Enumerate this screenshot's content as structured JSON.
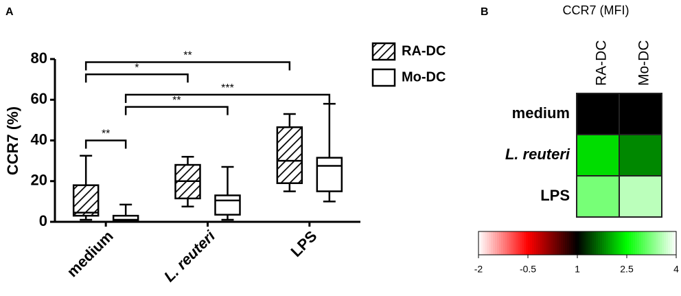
{
  "chart_data": [
    {
      "type": "box",
      "panel_label": "A",
      "ylabel": "CCR7 (%)",
      "categories": [
        "medium",
        "L. reuteri",
        "LPS"
      ],
      "category_styles": [
        "normal",
        "italic",
        "normal"
      ],
      "ylim": [
        0,
        80
      ],
      "yticks": [
        0,
        20,
        40,
        60,
        80
      ],
      "series": [
        {
          "name": "RA-DC",
          "color": "#000000",
          "fill": "hatch",
          "values": [
            {
              "min": 1,
              "q1": 3,
              "median": 4.5,
              "q3": 18,
              "max": 32.5
            },
            {
              "min": 7.5,
              "q1": 11.5,
              "median": 20,
              "q3": 28,
              "max": 32
            },
            {
              "min": 15,
              "q1": 19,
              "median": 30,
              "q3": 46.5,
              "max": 53
            }
          ]
        },
        {
          "name": "Mo-DC",
          "color": "#000000",
          "fill": "none",
          "values": [
            {
              "min": 0,
              "q1": 0.3,
              "median": 1,
              "q3": 3,
              "max": 8.5
            },
            {
              "min": 1,
              "q1": 3.5,
              "median": 10.5,
              "q3": 13,
              "max": 27
            },
            {
              "min": 10,
              "q1": 15,
              "median": 27.5,
              "q3": 31.5,
              "max": 58
            }
          ]
        }
      ],
      "annotations": [
        {
          "text": "**",
          "y": 78.5,
          "from": [
            0,
            0
          ],
          "to": [
            2,
            0
          ]
        },
        {
          "text": "*",
          "y": 72.5,
          "from": [
            0,
            0
          ],
          "to": [
            1,
            0
          ]
        },
        {
          "text": "***",
          "y": 62.5,
          "from": [
            0,
            1
          ],
          "to": [
            2,
            1
          ]
        },
        {
          "text": "**",
          "y": 56.5,
          "from": [
            0,
            1
          ],
          "to": [
            1,
            1
          ]
        },
        {
          "text": "**",
          "y": 40,
          "from": [
            0,
            0
          ],
          "to": [
            0,
            1
          ]
        }
      ]
    },
    {
      "type": "heatmap",
      "panel_label": "B",
      "title": "CCR7 (MFI)",
      "rows": [
        "medium",
        "L. reuteri",
        "LPS"
      ],
      "row_styles": [
        "normal",
        "italic",
        "normal"
      ],
      "columns": [
        "RA-DC",
        "Mo-DC"
      ],
      "values": [
        [
          1,
          1
        ],
        [
          2.3,
          1.8
        ],
        [
          3.2,
          3.6
        ]
      ],
      "colorbar_ticks": [
        -2,
        -0.5,
        1,
        2.5,
        4
      ],
      "colorbar_colors": [
        "#ffffff",
        "#ff0000",
        "#000000",
        "#00ff00",
        "#ffffff"
      ]
    }
  ]
}
